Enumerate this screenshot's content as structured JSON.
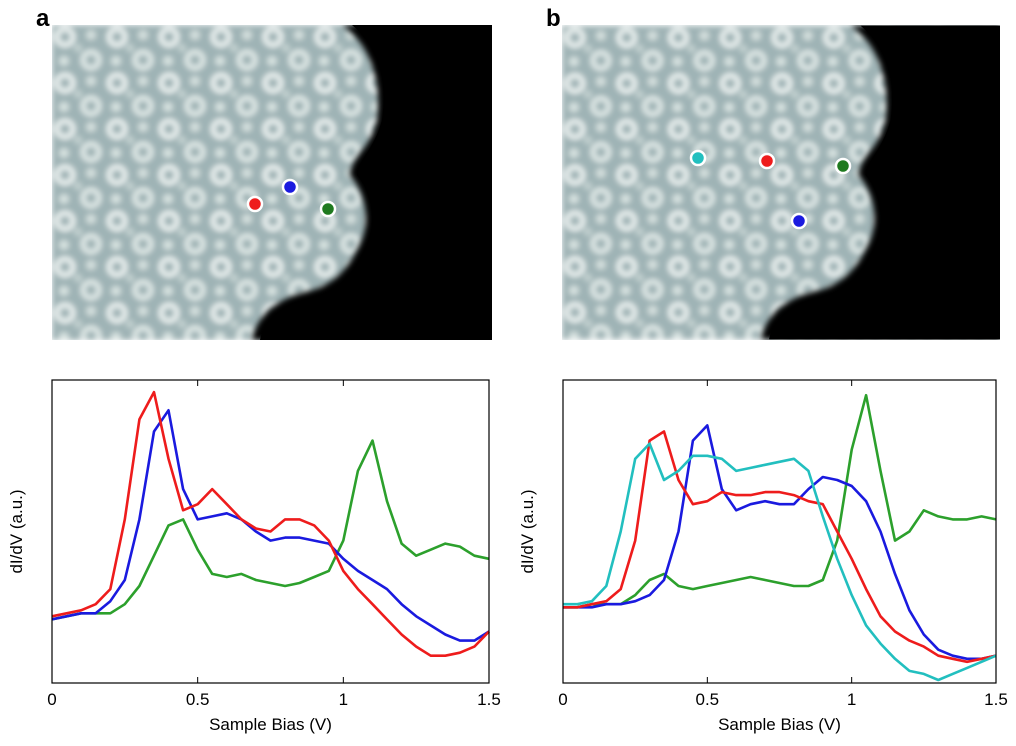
{
  "chart_data": [
    {
      "type": "line",
      "panel_label": "a",
      "xlabel": "Sample Bias (V)",
      "ylabel": "dI/dV (a.u.)",
      "xlim": [
        0,
        1.5
      ],
      "xticks": [
        0,
        0.5,
        1,
        1.5
      ],
      "ylim": [
        0,
        1
      ],
      "x": [
        0,
        0.05,
        0.1,
        0.15,
        0.2,
        0.25,
        0.3,
        0.35,
        0.4,
        0.45,
        0.5,
        0.55,
        0.6,
        0.65,
        0.7,
        0.75,
        0.8,
        0.85,
        0.9,
        0.95,
        1,
        1.05,
        1.1,
        1.15,
        1.2,
        1.25,
        1.3,
        1.35,
        1.4,
        1.45,
        1.5
      ],
      "series": [
        {
          "color": "#2ca02c",
          "values": [
            0.21,
            0.22,
            0.23,
            0.23,
            0.23,
            0.26,
            0.32,
            0.42,
            0.52,
            0.54,
            0.44,
            0.36,
            0.35,
            0.36,
            0.34,
            0.33,
            0.32,
            0.33,
            0.35,
            0.37,
            0.47,
            0.7,
            0.8,
            0.6,
            0.46,
            0.42,
            0.44,
            0.46,
            0.45,
            0.42,
            0.41
          ]
        },
        {
          "color": "#1a1adf",
          "values": [
            0.21,
            0.22,
            0.23,
            0.23,
            0.27,
            0.34,
            0.54,
            0.83,
            0.9,
            0.64,
            0.54,
            0.55,
            0.56,
            0.54,
            0.5,
            0.47,
            0.48,
            0.48,
            0.47,
            0.46,
            0.41,
            0.37,
            0.34,
            0.31,
            0.26,
            0.22,
            0.19,
            0.16,
            0.14,
            0.14,
            0.17
          ]
        },
        {
          "color": "#ee1c1c",
          "values": [
            0.22,
            0.23,
            0.24,
            0.26,
            0.31,
            0.54,
            0.87,
            0.96,
            0.74,
            0.57,
            0.59,
            0.64,
            0.59,
            0.54,
            0.51,
            0.5,
            0.54,
            0.54,
            0.52,
            0.47,
            0.37,
            0.31,
            0.26,
            0.21,
            0.16,
            0.12,
            0.09,
            0.09,
            0.1,
            0.12,
            0.17
          ]
        }
      ]
    },
    {
      "type": "line",
      "panel_label": "b",
      "xlabel": "Sample Bias (V)",
      "ylabel": "dI/dV (a.u.)",
      "xlim": [
        0,
        1.5
      ],
      "xticks": [
        0,
        0.5,
        1,
        1.5
      ],
      "ylim": [
        0,
        1
      ],
      "x": [
        0,
        0.05,
        0.1,
        0.15,
        0.2,
        0.25,
        0.3,
        0.35,
        0.4,
        0.45,
        0.5,
        0.55,
        0.6,
        0.65,
        0.7,
        0.75,
        0.8,
        0.85,
        0.9,
        0.95,
        1,
        1.05,
        1.1,
        1.15,
        1.2,
        1.25,
        1.3,
        1.35,
        1.4,
        1.45,
        1.5
      ],
      "series": [
        {
          "color": "#2ca02c",
          "values": [
            0.25,
            0.25,
            0.26,
            0.26,
            0.26,
            0.29,
            0.34,
            0.36,
            0.32,
            0.31,
            0.32,
            0.33,
            0.34,
            0.35,
            0.34,
            0.33,
            0.32,
            0.32,
            0.34,
            0.47,
            0.77,
            0.95,
            0.7,
            0.47,
            0.5,
            0.57,
            0.55,
            0.54,
            0.54,
            0.55,
            0.54
          ]
        },
        {
          "color": "#1a1adf",
          "values": [
            0.25,
            0.25,
            0.25,
            0.26,
            0.26,
            0.27,
            0.29,
            0.34,
            0.5,
            0.8,
            0.85,
            0.64,
            0.57,
            0.59,
            0.6,
            0.59,
            0.59,
            0.64,
            0.68,
            0.67,
            0.65,
            0.6,
            0.5,
            0.36,
            0.24,
            0.16,
            0.11,
            0.09,
            0.08,
            0.08,
            0.09
          ]
        },
        {
          "color": "#ee1c1c",
          "values": [
            0.25,
            0.25,
            0.26,
            0.27,
            0.31,
            0.47,
            0.8,
            0.83,
            0.67,
            0.59,
            0.6,
            0.63,
            0.62,
            0.62,
            0.63,
            0.63,
            0.62,
            0.6,
            0.59,
            0.5,
            0.41,
            0.31,
            0.22,
            0.17,
            0.14,
            0.12,
            0.09,
            0.08,
            0.07,
            0.08,
            0.09
          ]
        },
        {
          "color": "#22bfbf",
          "values": [
            0.26,
            0.26,
            0.27,
            0.32,
            0.5,
            0.74,
            0.79,
            0.67,
            0.7,
            0.75,
            0.75,
            0.74,
            0.7,
            0.71,
            0.72,
            0.73,
            0.74,
            0.7,
            0.55,
            0.41,
            0.29,
            0.19,
            0.13,
            0.08,
            0.04,
            0.03,
            0.01,
            0.03,
            0.05,
            0.07,
            0.09
          ]
        }
      ]
    }
  ]
}
